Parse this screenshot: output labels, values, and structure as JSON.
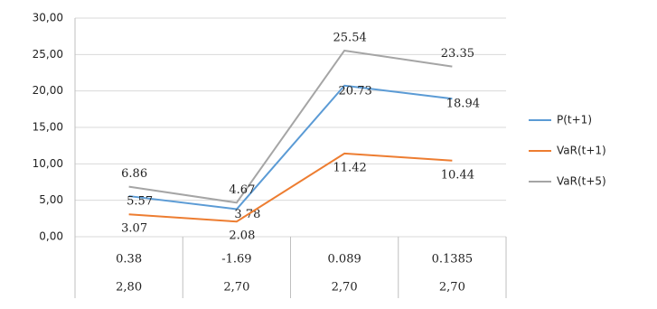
{
  "chart_data": {
    "type": "line",
    "categories": [
      "0.38",
      "-1.69",
      "0.089",
      "0.1385"
    ],
    "categories_2": [
      "2,80",
      "2,70",
      "2,70",
      "2,70"
    ],
    "series": [
      {
        "name": "P(t+1)",
        "color": "#5b9bd5",
        "values": [
          5.57,
          3.78,
          20.73,
          18.94
        ]
      },
      {
        "name": "VaR(t+1)",
        "color": "#ed7d31",
        "values": [
          3.07,
          2.08,
          11.42,
          10.44
        ]
      },
      {
        "name": "VaR(t+5)",
        "color": "#a5a5a5",
        "values": [
          6.86,
          4.67,
          25.54,
          23.35
        ]
      }
    ],
    "ylim": [
      0,
      30
    ],
    "yticks": [
      {
        "value": 0,
        "label": "0,00"
      },
      {
        "value": 5,
        "label": "5,00"
      },
      {
        "value": 10,
        "label": "10,00"
      },
      {
        "value": 15,
        "label": "15,00"
      },
      {
        "value": 20,
        "label": "20,00"
      },
      {
        "value": 25,
        "label": "25,00"
      },
      {
        "value": 30,
        "label": "30,00"
      }
    ],
    "grid": true,
    "legend": "right"
  }
}
